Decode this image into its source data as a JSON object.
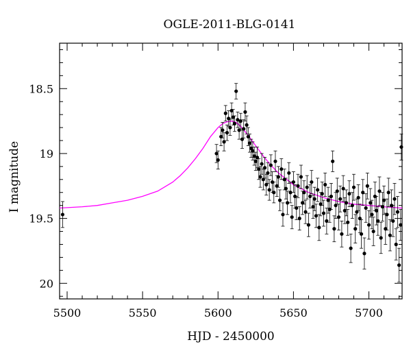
{
  "chart_data": {
    "type": "scatter",
    "title": "OGLE-2011-BLG-0141",
    "xlabel": "HJD - 2450000",
    "ylabel": "I magnitude",
    "xlim": [
      5495,
      5722
    ],
    "ylim": [
      20.12,
      18.15
    ],
    "y_inverted": true,
    "x_ticks": [
      5500,
      5550,
      5600,
      5650,
      5700
    ],
    "y_ticks": [
      18.5,
      19,
      19.5,
      20
    ],
    "x_tick_labels": [
      "5500",
      "5550",
      "5600",
      "5650",
      "5700"
    ],
    "y_tick_labels": [
      "18.5",
      "19",
      "19.5",
      "20"
    ],
    "grid": false,
    "legend": "none",
    "series": [
      {
        "kind": "points-with-errorbars",
        "color": "#000000",
        "points": [
          [
            5497,
            19.47,
            0.1
          ],
          [
            5599,
            19.0,
            0.07
          ],
          [
            5600,
            19.05,
            0.07
          ],
          [
            5602,
            18.87,
            0.07
          ],
          [
            5603,
            18.82,
            0.06
          ],
          [
            5604,
            18.91,
            0.07
          ],
          [
            5605,
            18.69,
            0.06
          ],
          [
            5606,
            18.84,
            0.06
          ],
          [
            5607,
            18.73,
            0.06
          ],
          [
            5608,
            18.8,
            0.06
          ],
          [
            5609,
            18.67,
            0.06
          ],
          [
            5610,
            18.72,
            0.06
          ],
          [
            5611,
            18.77,
            0.06
          ],
          [
            5612,
            18.52,
            0.06
          ],
          [
            5613,
            18.74,
            0.06
          ],
          [
            5614,
            18.82,
            0.07
          ],
          [
            5615,
            18.75,
            0.06
          ],
          [
            5616,
            18.89,
            0.07
          ],
          [
            5617,
            18.81,
            0.07
          ],
          [
            5618,
            18.68,
            0.07
          ],
          [
            5619,
            18.78,
            0.07
          ],
          [
            5620,
            18.87,
            0.07
          ],
          [
            5621,
            18.92,
            0.07
          ],
          [
            5622,
            18.96,
            0.07
          ],
          [
            5623,
            18.98,
            0.07
          ],
          [
            5624,
            19.02,
            0.07
          ],
          [
            5625,
            19.06,
            0.07
          ],
          [
            5626,
            19.03,
            0.08
          ],
          [
            5627,
            19.12,
            0.08
          ],
          [
            5628,
            19.18,
            0.08
          ],
          [
            5629,
            19.08,
            0.08
          ],
          [
            5630,
            19.2,
            0.08
          ],
          [
            5631,
            19.11,
            0.08
          ],
          [
            5632,
            19.24,
            0.08
          ],
          [
            5633,
            19.15,
            0.08
          ],
          [
            5634,
            19.28,
            0.08
          ],
          [
            5635,
            19.09,
            0.08
          ],
          [
            5636,
            19.22,
            0.08
          ],
          [
            5637,
            19.3,
            0.08
          ],
          [
            5638,
            19.06,
            0.08
          ],
          [
            5639,
            19.25,
            0.08
          ],
          [
            5640,
            19.18,
            0.08
          ],
          [
            5641,
            19.36,
            0.08
          ],
          [
            5642,
            19.12,
            0.08
          ],
          [
            5643,
            19.47,
            0.09
          ],
          [
            5644,
            19.2,
            0.08
          ],
          [
            5645,
            19.27,
            0.08
          ],
          [
            5646,
            19.38,
            0.09
          ],
          [
            5647,
            19.15,
            0.08
          ],
          [
            5648,
            19.3,
            0.08
          ],
          [
            5649,
            19.49,
            0.09
          ],
          [
            5650,
            19.22,
            0.08
          ],
          [
            5651,
            19.33,
            0.09
          ],
          [
            5652,
            19.42,
            0.09
          ],
          [
            5653,
            19.25,
            0.09
          ],
          [
            5654,
            19.5,
            0.09
          ],
          [
            5655,
            19.18,
            0.09
          ],
          [
            5656,
            19.38,
            0.09
          ],
          [
            5657,
            19.3,
            0.09
          ],
          [
            5658,
            19.45,
            0.09
          ],
          [
            5659,
            19.26,
            0.09
          ],
          [
            5660,
            19.55,
            0.09
          ],
          [
            5661,
            19.33,
            0.09
          ],
          [
            5662,
            19.22,
            0.09
          ],
          [
            5663,
            19.41,
            0.09
          ],
          [
            5664,
            19.35,
            0.09
          ],
          [
            5665,
            19.48,
            0.09
          ],
          [
            5666,
            19.28,
            0.09
          ],
          [
            5667,
            19.57,
            0.1
          ],
          [
            5668,
            19.39,
            0.09
          ],
          [
            5669,
            19.31,
            0.09
          ],
          [
            5670,
            19.46,
            0.1
          ],
          [
            5671,
            19.24,
            0.09
          ],
          [
            5672,
            19.52,
            0.1
          ],
          [
            5673,
            19.36,
            0.1
          ],
          [
            5674,
            19.43,
            0.1
          ],
          [
            5675,
            19.33,
            0.1
          ],
          [
            5676,
            19.06,
            0.08
          ],
          [
            5677,
            19.58,
            0.1
          ],
          [
            5678,
            19.4,
            0.1
          ],
          [
            5679,
            19.29,
            0.1
          ],
          [
            5680,
            19.49,
            0.1
          ],
          [
            5681,
            19.35,
            0.1
          ],
          [
            5682,
            19.62,
            0.1
          ],
          [
            5683,
            19.27,
            0.1
          ],
          [
            5684,
            19.44,
            0.1
          ],
          [
            5685,
            19.38,
            0.1
          ],
          [
            5686,
            19.53,
            0.1
          ],
          [
            5687,
            19.31,
            0.1
          ],
          [
            5688,
            19.73,
            0.11
          ],
          [
            5689,
            19.4,
            0.1
          ],
          [
            5690,
            19.26,
            0.1
          ],
          [
            5691,
            19.58,
            0.11
          ],
          [
            5692,
            19.45,
            0.1
          ],
          [
            5693,
            19.34,
            0.1
          ],
          [
            5694,
            19.5,
            0.11
          ],
          [
            5695,
            19.62,
            0.11
          ],
          [
            5696,
            19.3,
            0.1
          ],
          [
            5697,
            19.77,
            0.12
          ],
          [
            5698,
            19.42,
            0.11
          ],
          [
            5699,
            19.25,
            0.1
          ],
          [
            5700,
            19.55,
            0.11
          ],
          [
            5701,
            19.38,
            0.11
          ],
          [
            5702,
            19.47,
            0.11
          ],
          [
            5703,
            19.6,
            0.11
          ],
          [
            5704,
            19.33,
            0.11
          ],
          [
            5705,
            19.44,
            0.11
          ],
          [
            5706,
            19.52,
            0.11
          ],
          [
            5707,
            19.29,
            0.11
          ],
          [
            5708,
            19.65,
            0.12
          ],
          [
            5709,
            19.41,
            0.11
          ],
          [
            5710,
            19.36,
            0.11
          ],
          [
            5711,
            19.58,
            0.12
          ],
          [
            5712,
            19.47,
            0.12
          ],
          [
            5713,
            19.3,
            0.11
          ],
          [
            5714,
            19.63,
            0.12
          ],
          [
            5715,
            19.4,
            0.12
          ],
          [
            5716,
            19.52,
            0.12
          ],
          [
            5717,
            19.35,
            0.12
          ],
          [
            5718,
            19.7,
            0.12
          ],
          [
            5719,
            19.45,
            0.12
          ],
          [
            5720,
            19.86,
            0.13
          ],
          [
            5721,
            19.55,
            0.12
          ],
          [
            5721.5,
            18.95,
            0.1
          ]
        ]
      },
      {
        "kind": "model-curve",
        "color": "#ff00ff",
        "x": [
          5495,
          5510,
          5520,
          5530,
          5540,
          5550,
          5560,
          5570,
          5575,
          5580,
          5585,
          5590,
          5595,
          5600,
          5603,
          5606,
          5609,
          5612,
          5615,
          5620,
          5625,
          5630,
          5635,
          5640,
          5650,
          5660,
          5670,
          5680,
          5690,
          5700,
          5710,
          5722
        ],
        "y": [
          19.42,
          19.41,
          19.4,
          19.38,
          19.36,
          19.33,
          19.29,
          19.22,
          19.17,
          19.11,
          19.04,
          18.96,
          18.87,
          18.8,
          18.77,
          18.755,
          18.75,
          18.76,
          18.79,
          18.86,
          18.94,
          19.02,
          19.09,
          19.15,
          19.24,
          19.3,
          19.34,
          19.37,
          19.39,
          19.4,
          19.41,
          19.42
        ]
      }
    ]
  }
}
